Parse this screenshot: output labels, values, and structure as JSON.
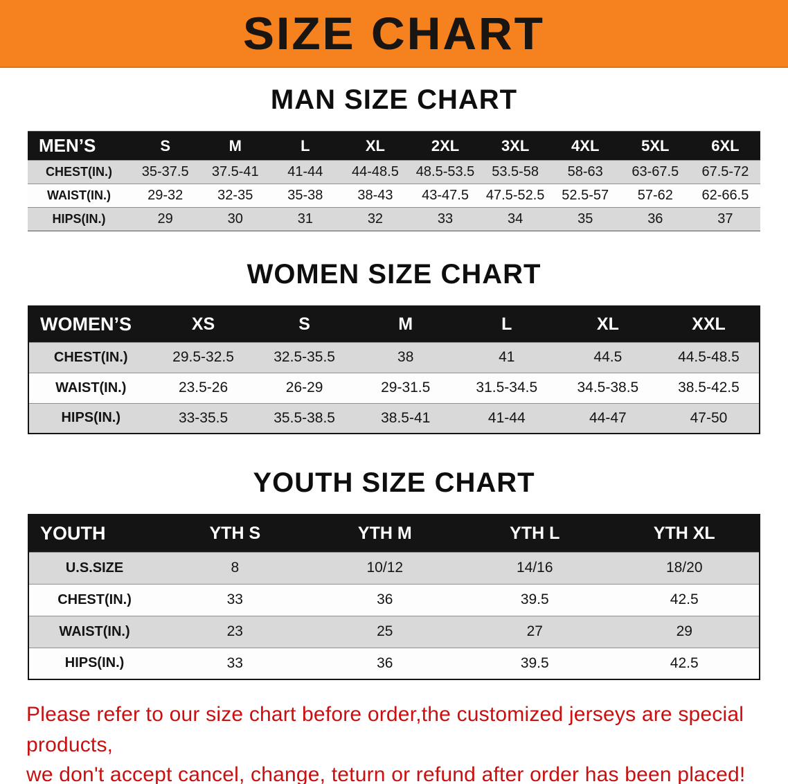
{
  "banner": {
    "title": "SIZE CHART"
  },
  "sections": {
    "men": {
      "heading": "MAN SIZE CHART"
    },
    "women": {
      "heading": "WOMEN SIZE CHART"
    },
    "youth": {
      "heading": "YOUTH SIZE CHART"
    }
  },
  "tables": {
    "men": {
      "header": [
        "MEN’S",
        "S",
        "M",
        "L",
        "XL",
        "2XL",
        "3XL",
        "4XL",
        "5XL",
        "6XL"
      ],
      "rows": [
        [
          "CHEST(IN.)",
          "35-37.5",
          "37.5-41",
          "41-44",
          "44-48.5",
          "48.5-53.5",
          "53.5-58",
          "58-63",
          "63-67.5",
          "67.5-72"
        ],
        [
          "WAIST(IN.)",
          "29-32",
          "32-35",
          "35-38",
          "38-43",
          "43-47.5",
          "47.5-52.5",
          "52.5-57",
          "57-62",
          "62-66.5"
        ],
        [
          "HIPS(IN.)",
          "29",
          "30",
          "31",
          "32",
          "33",
          "34",
          "35",
          "36",
          "37"
        ]
      ]
    },
    "women": {
      "header": [
        "WOMEN’S",
        "XS",
        "S",
        "M",
        "L",
        "XL",
        "XXL"
      ],
      "rows": [
        [
          "CHEST(IN.)",
          "29.5-32.5",
          "32.5-35.5",
          "38",
          "41",
          "44.5",
          "44.5-48.5"
        ],
        [
          "WAIST(IN.)",
          "23.5-26",
          "26-29",
          "29-31.5",
          "31.5-34.5",
          "34.5-38.5",
          "38.5-42.5"
        ],
        [
          "HIPS(IN.)",
          "33-35.5",
          "35.5-38.5",
          "38.5-41",
          "41-44",
          "44-47",
          "47-50"
        ]
      ]
    },
    "youth": {
      "header": [
        "YOUTH",
        "YTH S",
        "YTH M",
        "YTH L",
        "YTH XL"
      ],
      "rows": [
        [
          "U.S.SIZE",
          "8",
          "10/12",
          "14/16",
          "18/20"
        ],
        [
          "CHEST(IN.)",
          "33",
          "36",
          "39.5",
          "42.5"
        ],
        [
          "WAIST(IN.)",
          "23",
          "25",
          "27",
          "29"
        ],
        [
          "HIPS(IN.)",
          "33",
          "36",
          "39.5",
          "42.5"
        ]
      ]
    }
  },
  "footer": {
    "line1": "Please refer to our size chart before order,the customized jerseys are special products,",
    "line2": "we don't accept cancel, change, teturn or refund after order has been placed!"
  },
  "colors": {
    "banner_orange": "#f5821f",
    "table_header_black": "#141414",
    "row_gray": "#d9d9d9",
    "disclaimer_red": "#c90f0f"
  }
}
